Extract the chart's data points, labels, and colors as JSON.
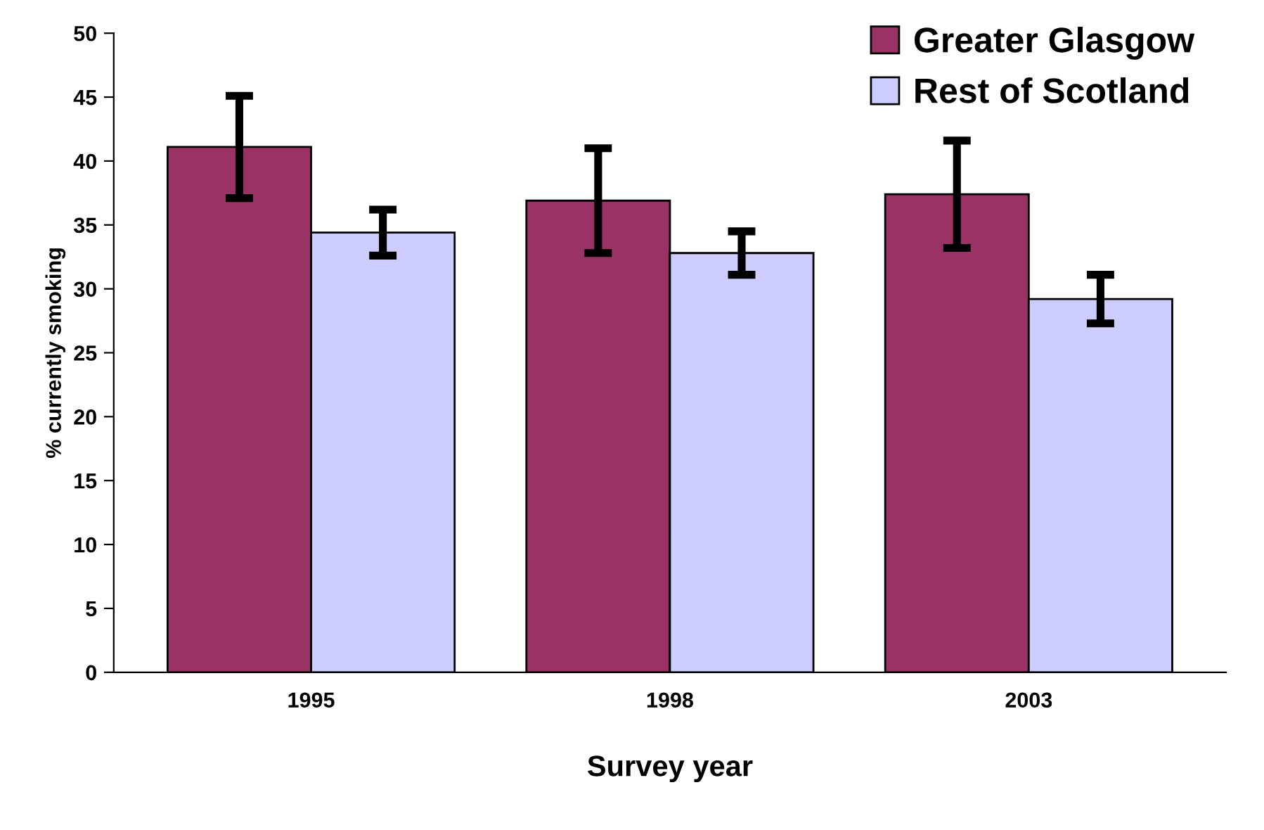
{
  "chart_data": {
    "type": "bar",
    "xlabel": "Survey year",
    "ylabel": "% currently smoking",
    "categories": [
      "1995",
      "1998",
      "2003"
    ],
    "series": [
      {
        "name": "Greater Glasgow",
        "color": "#993366",
        "values": [
          41.1,
          36.9,
          37.4
        ],
        "errors": [
          4.0,
          4.1,
          4.2
        ]
      },
      {
        "name": "Rest of Scotland",
        "color": "#ccccff",
        "values": [
          34.4,
          32.8,
          29.2
        ],
        "errors": [
          1.8,
          1.7,
          1.9
        ]
      }
    ],
    "ylim": [
      0,
      50
    ],
    "yticks": [
      0,
      5,
      10,
      15,
      20,
      25,
      30,
      35,
      40,
      45,
      50
    ],
    "grid": false,
    "legend": "top right"
  }
}
